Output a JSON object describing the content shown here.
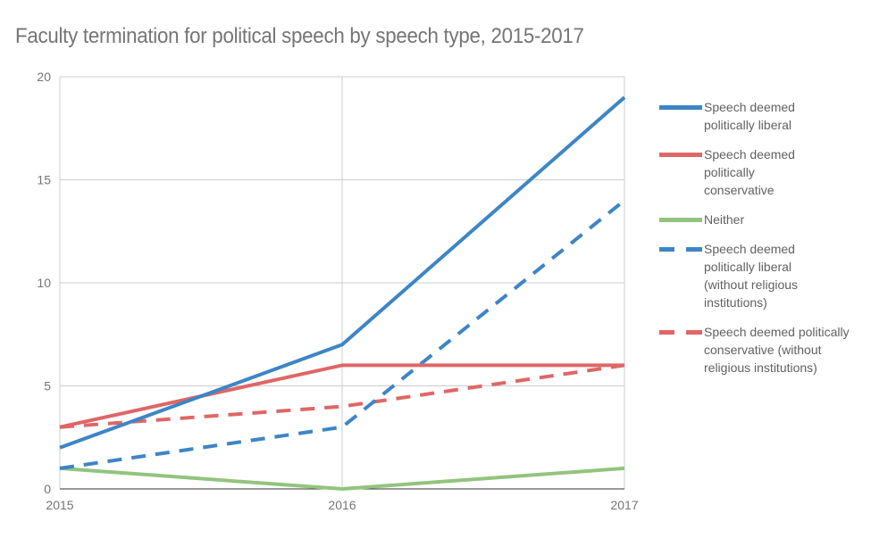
{
  "chart_data": {
    "type": "line",
    "title": "Faculty termination for political speech by speech type, 2015-2017",
    "xlabel": "",
    "ylabel": "",
    "x": [
      "2015",
      "2016",
      "2017"
    ],
    "ylim": [
      0,
      20
    ],
    "yticks": [
      "0",
      "5",
      "10",
      "15",
      "20"
    ],
    "grid": true,
    "legend_position": "right",
    "series": [
      {
        "name": "Speech deemed politically liberal",
        "values": [
          2,
          7,
          19
        ],
        "color": "#3d85c6",
        "style": "solid"
      },
      {
        "name": "Speech deemed politically conservative",
        "values": [
          3,
          6,
          6
        ],
        "color": "#e06666",
        "style": "solid"
      },
      {
        "name": "Neither",
        "values": [
          1,
          0,
          1
        ],
        "color": "#93c47d",
        "style": "solid"
      },
      {
        "name": "Speech deemed politically liberal (without religious institutions)",
        "values": [
          1,
          3,
          14
        ],
        "color": "#3d85c6",
        "style": "dashed"
      },
      {
        "name": "Speech deemed politically conservative (without religious institutions)",
        "values": [
          3,
          4,
          6
        ],
        "color": "#e06666",
        "style": "dashed"
      }
    ]
  }
}
